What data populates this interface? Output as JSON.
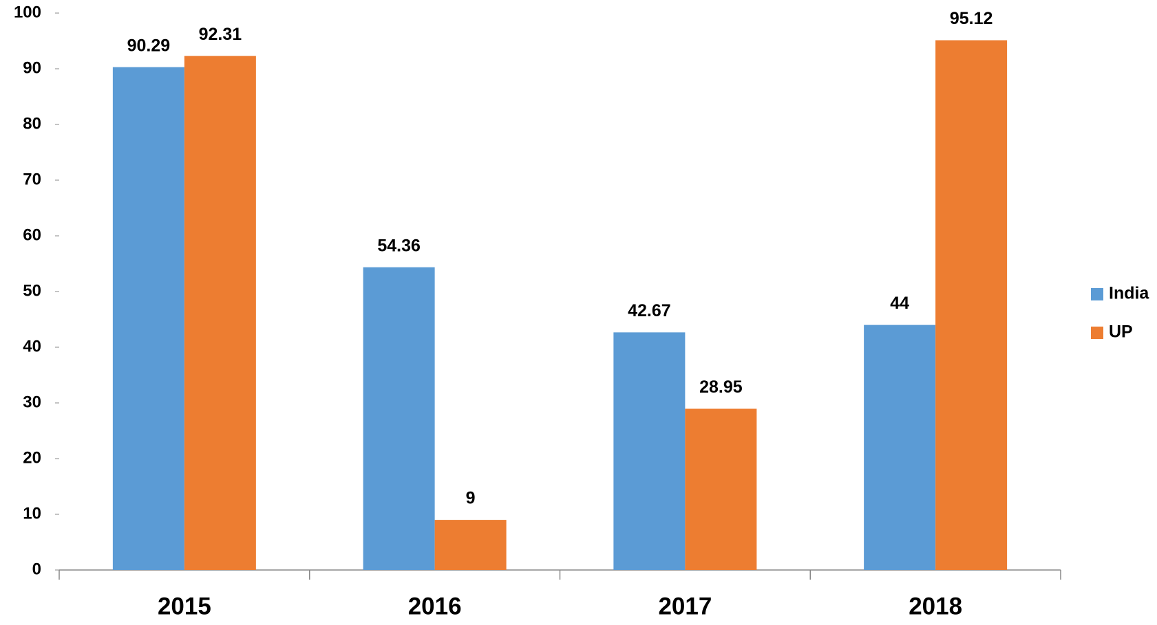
{
  "chart_data": {
    "type": "bar",
    "categories": [
      "2015",
      "2016",
      "2017",
      "2018"
    ],
    "series": [
      {
        "name": "India",
        "color": "#5b9bd5",
        "values": [
          90.29,
          54.36,
          42.67,
          44
        ]
      },
      {
        "name": "UP",
        "color": "#ed7d31",
        "values": [
          92.31,
          9,
          28.95,
          95.12
        ]
      }
    ],
    "ylim": [
      0,
      100
    ],
    "yticks": [
      0,
      10,
      20,
      30,
      40,
      50,
      60,
      70,
      80,
      90,
      100
    ],
    "grid": false,
    "legend": "right"
  }
}
